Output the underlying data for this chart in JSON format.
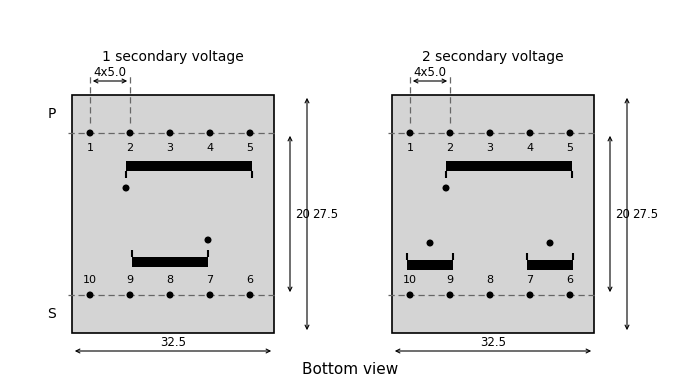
{
  "bg_color": "#ffffff",
  "box_fill": "#d4d4d4",
  "box_edge": "#000000",
  "title1": "1 secondary voltage",
  "title2": "2 secondary voltage",
  "bottom_label": "Bottom view",
  "dim_4x5": "4x5.0",
  "dim_32_5": "32.5",
  "dim_20": "20",
  "dim_27_5": "27.5",
  "label_P": "P",
  "label_S": "S",
  "pin_labels_top": [
    "1",
    "2",
    "3",
    "4",
    "5"
  ],
  "pin_labels_bot": [
    "10",
    "9",
    "8",
    "7",
    "6"
  ],
  "font_size_title": 10,
  "font_size_dim": 8.5,
  "font_size_pin": 8,
  "font_size_PS": 10,
  "font_size_bottom": 11
}
